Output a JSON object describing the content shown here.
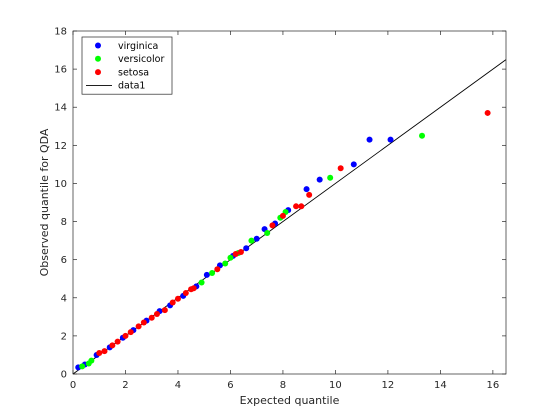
{
  "chart_data": {
    "type": "scatter",
    "xlabel": "Expected quantile",
    "ylabel": "Observed quantile for QDA",
    "xlim": [
      0,
      16.5
    ],
    "ylim": [
      0,
      18
    ],
    "xticks": [
      0,
      2,
      4,
      6,
      8,
      10,
      12,
      14,
      16
    ],
    "yticks": [
      0,
      2,
      4,
      6,
      8,
      10,
      12,
      14,
      16,
      18
    ],
    "legend_position": "top-left",
    "grid": false,
    "series": [
      {
        "name": "virginica",
        "color": "#0000ff",
        "points": [
          [
            0.2,
            0.35
          ],
          [
            0.45,
            0.5
          ],
          [
            0.9,
            1.0
          ],
          [
            1.4,
            1.4
          ],
          [
            1.9,
            1.9
          ],
          [
            2.3,
            2.3
          ],
          [
            2.8,
            2.8
          ],
          [
            3.3,
            3.3
          ],
          [
            3.7,
            3.6
          ],
          [
            4.2,
            4.1
          ],
          [
            4.7,
            4.6
          ],
          [
            5.1,
            5.2
          ],
          [
            5.6,
            5.7
          ],
          [
            6.1,
            6.2
          ],
          [
            6.6,
            6.6
          ],
          [
            7.0,
            7.1
          ],
          [
            7.3,
            7.6
          ],
          [
            7.7,
            7.9
          ],
          [
            8.2,
            8.6
          ],
          [
            8.9,
            9.7
          ],
          [
            9.4,
            10.2
          ],
          [
            10.7,
            11.0
          ],
          [
            11.3,
            12.3
          ],
          [
            12.1,
            12.3
          ]
        ]
      },
      {
        "name": "versicolor",
        "color": "#00ff00",
        "points": [
          [
            0.35,
            0.4
          ],
          [
            0.6,
            0.55
          ],
          [
            0.7,
            0.7
          ],
          [
            4.9,
            4.8
          ],
          [
            5.3,
            5.3
          ],
          [
            5.8,
            5.8
          ],
          [
            6.0,
            6.1
          ],
          [
            6.3,
            6.35
          ],
          [
            6.8,
            7.0
          ],
          [
            7.4,
            7.4
          ],
          [
            7.9,
            8.2
          ],
          [
            8.1,
            8.5
          ],
          [
            9.8,
            10.3
          ],
          [
            13.3,
            12.5
          ]
        ]
      },
      {
        "name": "setosa",
        "color": "#ff0000",
        "points": [
          [
            1.0,
            1.1
          ],
          [
            1.2,
            1.2
          ],
          [
            1.5,
            1.5
          ],
          [
            1.7,
            1.7
          ],
          [
            2.0,
            2.0
          ],
          [
            2.2,
            2.2
          ],
          [
            2.5,
            2.5
          ],
          [
            2.7,
            2.7
          ],
          [
            3.0,
            2.95
          ],
          [
            3.2,
            3.15
          ],
          [
            3.5,
            3.35
          ],
          [
            3.8,
            3.75
          ],
          [
            4.0,
            3.95
          ],
          [
            4.3,
            4.25
          ],
          [
            4.5,
            4.45
          ],
          [
            4.6,
            4.5
          ],
          [
            5.5,
            5.5
          ],
          [
            6.2,
            6.3
          ],
          [
            6.4,
            6.4
          ],
          [
            7.6,
            7.8
          ],
          [
            8.0,
            8.3
          ],
          [
            8.5,
            8.8
          ],
          [
            8.7,
            8.8
          ],
          [
            9.0,
            9.4
          ],
          [
            10.2,
            10.8
          ],
          [
            15.8,
            13.7
          ]
        ]
      }
    ],
    "reference_line": {
      "name": "data1",
      "color": "#000000",
      "x": [
        0,
        16.5
      ],
      "y": [
        0,
        16.5
      ]
    }
  }
}
